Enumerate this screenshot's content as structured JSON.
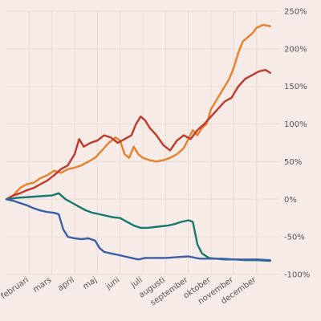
{
  "chart_data": {
    "type": "line",
    "title": "",
    "xlabel": "",
    "ylabel": "",
    "x_ticks": [
      "februari",
      "mars",
      "april",
      "maj",
      "juni",
      "juli",
      "augusti",
      "september",
      "oktober",
      "november",
      "december"
    ],
    "y_ticks": [
      "250%",
      "200%",
      "150%",
      "100%",
      "50%",
      "0%",
      "-50%",
      "-100%"
    ],
    "ylim": [
      -100,
      250
    ],
    "x_domain": [
      0,
      12
    ],
    "grid": true,
    "y_axis_position": "right",
    "series": [
      {
        "color": "#e8812c",
        "points": [
          [
            0,
            0
          ],
          [
            0.3,
            5
          ],
          [
            0.6,
            15
          ],
          [
            0.9,
            20
          ],
          [
            1.2,
            22
          ],
          [
            1.5,
            28
          ],
          [
            1.8,
            32
          ],
          [
            2.1,
            38
          ],
          [
            2.4,
            35
          ],
          [
            2.7,
            40
          ],
          [
            3.0,
            42
          ],
          [
            3.3,
            45
          ],
          [
            3.6,
            50
          ],
          [
            3.9,
            55
          ],
          [
            4.2,
            65
          ],
          [
            4.5,
            75
          ],
          [
            4.8,
            82
          ],
          [
            5.0,
            78
          ],
          [
            5.2,
            60
          ],
          [
            5.4,
            55
          ],
          [
            5.6,
            70
          ],
          [
            5.8,
            60
          ],
          [
            6.0,
            55
          ],
          [
            6.3,
            52
          ],
          [
            6.6,
            50
          ],
          [
            6.9,
            52
          ],
          [
            7.2,
            55
          ],
          [
            7.5,
            60
          ],
          [
            7.8,
            68
          ],
          [
            8.0,
            80
          ],
          [
            8.2,
            92
          ],
          [
            8.4,
            85
          ],
          [
            8.6,
            95
          ],
          [
            8.8,
            100
          ],
          [
            9.0,
            120
          ],
          [
            9.2,
            130
          ],
          [
            9.4,
            140
          ],
          [
            9.6,
            150
          ],
          [
            9.8,
            160
          ],
          [
            10.0,
            175
          ],
          [
            10.2,
            195
          ],
          [
            10.4,
            210
          ],
          [
            10.6,
            215
          ],
          [
            10.8,
            220
          ],
          [
            11.0,
            228
          ],
          [
            11.3,
            232
          ],
          [
            11.6,
            230
          ]
        ]
      },
      {
        "color": "#c0392b",
        "points": [
          [
            0,
            0
          ],
          [
            0.3,
            5
          ],
          [
            0.6,
            8
          ],
          [
            0.9,
            12
          ],
          [
            1.2,
            15
          ],
          [
            1.5,
            20
          ],
          [
            1.8,
            25
          ],
          [
            2.1,
            32
          ],
          [
            2.4,
            40
          ],
          [
            2.7,
            45
          ],
          [
            3.0,
            60
          ],
          [
            3.2,
            80
          ],
          [
            3.4,
            70
          ],
          [
            3.7,
            75
          ],
          [
            4.0,
            78
          ],
          [
            4.3,
            85
          ],
          [
            4.6,
            82
          ],
          [
            4.9,
            75
          ],
          [
            5.2,
            80
          ],
          [
            5.5,
            85
          ],
          [
            5.7,
            100
          ],
          [
            5.9,
            110
          ],
          [
            6.1,
            105
          ],
          [
            6.3,
            95
          ],
          [
            6.6,
            85
          ],
          [
            6.9,
            72
          ],
          [
            7.2,
            65
          ],
          [
            7.5,
            78
          ],
          [
            7.8,
            85
          ],
          [
            8.1,
            80
          ],
          [
            8.4,
            92
          ],
          [
            8.7,
            100
          ],
          [
            9.0,
            110
          ],
          [
            9.3,
            120
          ],
          [
            9.6,
            130
          ],
          [
            9.9,
            135
          ],
          [
            10.2,
            150
          ],
          [
            10.5,
            160
          ],
          [
            10.8,
            165
          ],
          [
            11.1,
            170
          ],
          [
            11.4,
            172
          ],
          [
            11.6,
            168
          ]
        ]
      },
      {
        "color": "#16796f",
        "points": [
          [
            0,
            0
          ],
          [
            0.5,
            2
          ],
          [
            1.0,
            3
          ],
          [
            1.5,
            4
          ],
          [
            2.0,
            5
          ],
          [
            2.3,
            8
          ],
          [
            2.6,
            0
          ],
          [
            2.9,
            -5
          ],
          [
            3.2,
            -10
          ],
          [
            3.5,
            -15
          ],
          [
            3.8,
            -18
          ],
          [
            4.1,
            -20
          ],
          [
            4.4,
            -22
          ],
          [
            4.7,
            -24
          ],
          [
            5.0,
            -25
          ],
          [
            5.3,
            -30
          ],
          [
            5.6,
            -35
          ],
          [
            5.9,
            -38
          ],
          [
            6.2,
            -38
          ],
          [
            6.5,
            -37
          ],
          [
            6.8,
            -36
          ],
          [
            7.1,
            -35
          ],
          [
            7.4,
            -33
          ],
          [
            7.7,
            -30
          ],
          [
            8.0,
            -28
          ],
          [
            8.2,
            -30
          ],
          [
            8.4,
            -60
          ],
          [
            8.6,
            -72
          ],
          [
            8.9,
            -78
          ],
          [
            9.2,
            -79
          ],
          [
            9.6,
            -80
          ],
          [
            10.0,
            -80
          ],
          [
            10.5,
            -81
          ],
          [
            11.0,
            -81
          ],
          [
            11.6,
            -82
          ]
        ]
      },
      {
        "color": "#3a5fa8",
        "points": [
          [
            0,
            0
          ],
          [
            0.3,
            -2
          ],
          [
            0.6,
            -5
          ],
          [
            0.9,
            -8
          ],
          [
            1.2,
            -12
          ],
          [
            1.5,
            -15
          ],
          [
            1.8,
            -17
          ],
          [
            2.1,
            -18
          ],
          [
            2.3,
            -20
          ],
          [
            2.5,
            -40
          ],
          [
            2.7,
            -50
          ],
          [
            3.0,
            -52
          ],
          [
            3.3,
            -53
          ],
          [
            3.6,
            -52
          ],
          [
            3.9,
            -55
          ],
          [
            4.1,
            -65
          ],
          [
            4.3,
            -70
          ],
          [
            4.6,
            -72
          ],
          [
            4.9,
            -74
          ],
          [
            5.2,
            -76
          ],
          [
            5.5,
            -78
          ],
          [
            5.8,
            -80
          ],
          [
            6.1,
            -78
          ],
          [
            6.5,
            -78
          ],
          [
            7.0,
            -78
          ],
          [
            7.5,
            -77
          ],
          [
            8.0,
            -76
          ],
          [
            8.5,
            -79
          ],
          [
            9.0,
            -79
          ],
          [
            9.5,
            -79
          ],
          [
            10.0,
            -80
          ],
          [
            10.5,
            -80
          ],
          [
            11.0,
            -80
          ],
          [
            11.6,
            -81
          ]
        ]
      }
    ]
  }
}
